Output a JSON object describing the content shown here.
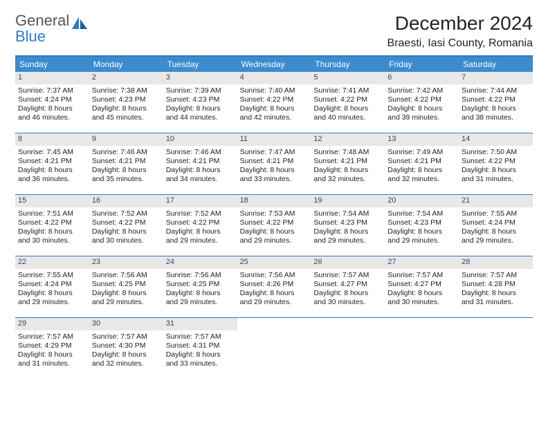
{
  "brand": {
    "word1": "General",
    "word2": "Blue"
  },
  "title": "December 2024",
  "location": "Braesti, Iasi County, Romania",
  "colors": {
    "header_bg": "#3b8bce",
    "border": "#2f7ac0",
    "daynum_bg": "#e8e8e8",
    "text": "#222222",
    "brand_gray": "#555555",
    "brand_blue": "#2f7ac0",
    "bg": "#ffffff"
  },
  "typography": {
    "title_fontsize": 28,
    "location_fontsize": 16,
    "dayheader_fontsize": 12,
    "cell_fontsize": 10.5
  },
  "day_names": [
    "Sunday",
    "Monday",
    "Tuesday",
    "Wednesday",
    "Thursday",
    "Friday",
    "Saturday"
  ],
  "weeks": [
    [
      {
        "n": 1,
        "sr": "7:37 AM",
        "ss": "4:24 PM",
        "dl": "8 hours and 46 minutes."
      },
      {
        "n": 2,
        "sr": "7:38 AM",
        "ss": "4:23 PM",
        "dl": "8 hours and 45 minutes."
      },
      {
        "n": 3,
        "sr": "7:39 AM",
        "ss": "4:23 PM",
        "dl": "8 hours and 44 minutes."
      },
      {
        "n": 4,
        "sr": "7:40 AM",
        "ss": "4:22 PM",
        "dl": "8 hours and 42 minutes."
      },
      {
        "n": 5,
        "sr": "7:41 AM",
        "ss": "4:22 PM",
        "dl": "8 hours and 40 minutes."
      },
      {
        "n": 6,
        "sr": "7:42 AM",
        "ss": "4:22 PM",
        "dl": "8 hours and 39 minutes."
      },
      {
        "n": 7,
        "sr": "7:44 AM",
        "ss": "4:22 PM",
        "dl": "8 hours and 38 minutes."
      }
    ],
    [
      {
        "n": 8,
        "sr": "7:45 AM",
        "ss": "4:21 PM",
        "dl": "8 hours and 36 minutes."
      },
      {
        "n": 9,
        "sr": "7:46 AM",
        "ss": "4:21 PM",
        "dl": "8 hours and 35 minutes."
      },
      {
        "n": 10,
        "sr": "7:46 AM",
        "ss": "4:21 PM",
        "dl": "8 hours and 34 minutes."
      },
      {
        "n": 11,
        "sr": "7:47 AM",
        "ss": "4:21 PM",
        "dl": "8 hours and 33 minutes."
      },
      {
        "n": 12,
        "sr": "7:48 AM",
        "ss": "4:21 PM",
        "dl": "8 hours and 32 minutes."
      },
      {
        "n": 13,
        "sr": "7:49 AM",
        "ss": "4:21 PM",
        "dl": "8 hours and 32 minutes."
      },
      {
        "n": 14,
        "sr": "7:50 AM",
        "ss": "4:22 PM",
        "dl": "8 hours and 31 minutes."
      }
    ],
    [
      {
        "n": 15,
        "sr": "7:51 AM",
        "ss": "4:22 PM",
        "dl": "8 hours and 30 minutes."
      },
      {
        "n": 16,
        "sr": "7:52 AM",
        "ss": "4:22 PM",
        "dl": "8 hours and 30 minutes."
      },
      {
        "n": 17,
        "sr": "7:52 AM",
        "ss": "4:22 PM",
        "dl": "8 hours and 29 minutes."
      },
      {
        "n": 18,
        "sr": "7:53 AM",
        "ss": "4:22 PM",
        "dl": "8 hours and 29 minutes."
      },
      {
        "n": 19,
        "sr": "7:54 AM",
        "ss": "4:23 PM",
        "dl": "8 hours and 29 minutes."
      },
      {
        "n": 20,
        "sr": "7:54 AM",
        "ss": "4:23 PM",
        "dl": "8 hours and 29 minutes."
      },
      {
        "n": 21,
        "sr": "7:55 AM",
        "ss": "4:24 PM",
        "dl": "8 hours and 29 minutes."
      }
    ],
    [
      {
        "n": 22,
        "sr": "7:55 AM",
        "ss": "4:24 PM",
        "dl": "8 hours and 29 minutes."
      },
      {
        "n": 23,
        "sr": "7:56 AM",
        "ss": "4:25 PM",
        "dl": "8 hours and 29 minutes."
      },
      {
        "n": 24,
        "sr": "7:56 AM",
        "ss": "4:25 PM",
        "dl": "8 hours and 29 minutes."
      },
      {
        "n": 25,
        "sr": "7:56 AM",
        "ss": "4:26 PM",
        "dl": "8 hours and 29 minutes."
      },
      {
        "n": 26,
        "sr": "7:57 AM",
        "ss": "4:27 PM",
        "dl": "8 hours and 30 minutes."
      },
      {
        "n": 27,
        "sr": "7:57 AM",
        "ss": "4:27 PM",
        "dl": "8 hours and 30 minutes."
      },
      {
        "n": 28,
        "sr": "7:57 AM",
        "ss": "4:28 PM",
        "dl": "8 hours and 31 minutes."
      }
    ],
    [
      {
        "n": 29,
        "sr": "7:57 AM",
        "ss": "4:29 PM",
        "dl": "8 hours and 31 minutes."
      },
      {
        "n": 30,
        "sr": "7:57 AM",
        "ss": "4:30 PM",
        "dl": "8 hours and 32 minutes."
      },
      {
        "n": 31,
        "sr": "7:57 AM",
        "ss": "4:31 PM",
        "dl": "8 hours and 33 minutes."
      },
      null,
      null,
      null,
      null
    ]
  ],
  "labels": {
    "sunrise": "Sunrise:",
    "sunset": "Sunset:",
    "daylight": "Daylight:"
  }
}
